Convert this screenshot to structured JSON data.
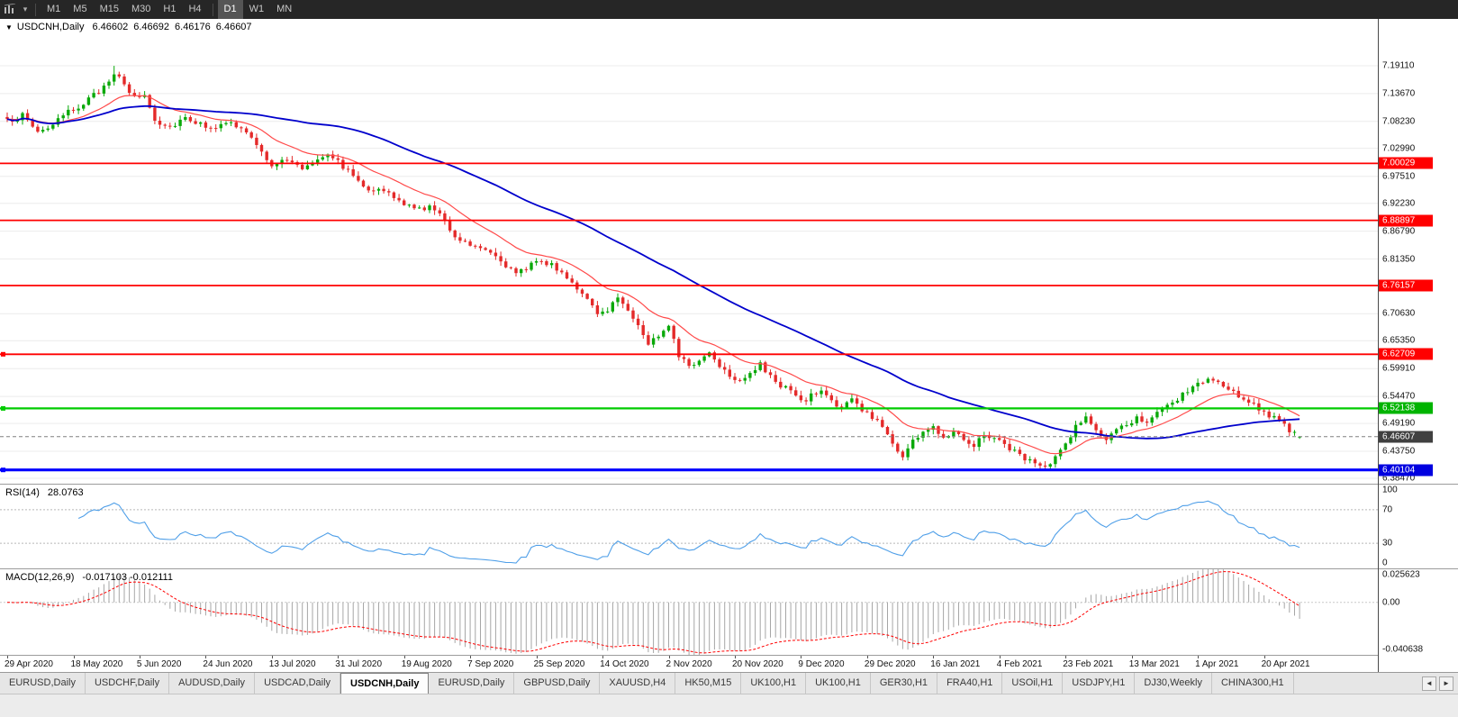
{
  "icons": {
    "chart_expand": "▼",
    "dropdown_caret": "▾",
    "scroll_left": "◄",
    "scroll_right": "►"
  },
  "colors": {
    "candle_up": "#09a909",
    "candle_down": "#e42a2a",
    "grid": "#ececec",
    "rsi_line": "#4f9fe8",
    "macd_histogram": "#a6a6a6",
    "macd_signal": "#ff0000",
    "current_price_badge": "#404040",
    "toolbar_bg": "#262626"
  },
  "toolbar": {
    "timeframes": [
      "M1",
      "M5",
      "M15",
      "M30",
      "H1",
      "H4",
      "D1",
      "W1",
      "MN"
    ],
    "active": "D1",
    "separator_after": "H4"
  },
  "chart_info": {
    "symbol_period": "USDCNH,Daily",
    "open": "6.46602",
    "high": "6.46692",
    "low": "6.46176",
    "close": "6.46607"
  },
  "rsi_panel": {
    "label": "RSI(14)",
    "value": "28.0763"
  },
  "macd_panel": {
    "label": "MACD(12,26,9)",
    "values": "-0.017103 -0.012111",
    "axis_labels": [
      "0.025623",
      "0.00",
      "-0.040638"
    ]
  },
  "tabs": {
    "items": [
      {
        "label": "EURUSD,Daily",
        "active": false
      },
      {
        "label": "USDCHF,Daily",
        "active": false
      },
      {
        "label": "AUDUSD,Daily",
        "active": false
      },
      {
        "label": "USDCAD,Daily",
        "active": false
      },
      {
        "label": "USDCNH,Daily",
        "active": true
      },
      {
        "label": "EURUSD,Daily",
        "active": false
      },
      {
        "label": "GBPUSD,Daily",
        "active": false
      },
      {
        "label": "XAUUSD,H4",
        "active": false
      },
      {
        "label": "HK50,M15",
        "active": false
      },
      {
        "label": "UK100,H1",
        "active": false
      },
      {
        "label": "UK100,H1",
        "active": false
      },
      {
        "label": "GER30,H1",
        "active": false
      },
      {
        "label": "FRA40,H1",
        "active": false
      },
      {
        "label": "USOil,H1",
        "active": false
      },
      {
        "label": "USDJPY,H1",
        "active": false
      },
      {
        "label": "DJ30,Weekly",
        "active": false
      },
      {
        "label": "CHINA300,H1",
        "active": false
      }
    ]
  },
  "chart_data": {
    "type": "candlestick",
    "symbol": "USDCNH",
    "timeframe": "Daily",
    "last_ohlc": {
      "open": 6.46602,
      "high": 6.46692,
      "low": 6.46176,
      "close": 6.46607
    },
    "current_price": 6.46607,
    "candles_count": 255,
    "bars_per_label": 13,
    "visible_range": {
      "price_min": 6.3741,
      "price_max": 7.2827
    },
    "extremes": {
      "high_index": 21,
      "high": 7.191,
      "low_index": 204,
      "low": 6.40104
    },
    "price_axis_ticks": [
      7.1911,
      7.1367,
      7.0823,
      7.0299,
      6.9751,
      6.9223,
      6.8679,
      6.8135,
      6.7063,
      6.6535,
      6.5991,
      6.5447,
      6.4919,
      6.4375,
      6.3847
    ],
    "horizontal_levels": [
      {
        "price": 7.00029,
        "color": "#ff0000",
        "badge": "#ff0000",
        "thickness": 1.8,
        "marker": false,
        "type": "resistance"
      },
      {
        "price": 6.88897,
        "color": "#ff0000",
        "badge": "#ff0000",
        "thickness": 1.8,
        "marker": false,
        "type": "resistance"
      },
      {
        "price": 6.76157,
        "color": "#ff0000",
        "badge": "#ff0000",
        "thickness": 1.8,
        "marker": false,
        "type": "resistance"
      },
      {
        "price": 6.62709,
        "color": "#ff0000",
        "badge": "#ff0000",
        "thickness": 1.8,
        "marker": true,
        "type": "resistance"
      },
      {
        "price": 6.52138,
        "color": "#00cc00",
        "badge": "#00b400",
        "thickness": 2.2,
        "marker": true,
        "type": "support"
      },
      {
        "price": 6.40104,
        "color": "#0000ff",
        "badge": "#0000e0",
        "thickness": 3.2,
        "marker": true,
        "type": "support"
      }
    ],
    "indicators": {
      "ma_fast": {
        "type": "EMA",
        "period": 16,
        "color": "#ff4a4a"
      },
      "ma_slow": {
        "type": "SMA",
        "period": 55,
        "color": "#0000cc"
      },
      "rsi": {
        "period": 14,
        "value": 28.0763,
        "levels": [
          100,
          70,
          30,
          0
        ],
        "dashed_levels": [
          70,
          30
        ]
      },
      "macd": {
        "fast": 12,
        "slow": 26,
        "signal": 9,
        "value": -0.017103,
        "signal_value": -0.012111,
        "axis": [
          0.025623,
          0,
          -0.040638
        ]
      }
    },
    "date_labels": [
      "29 Apr 2020",
      "18 May 2020",
      "5 Jun 2020",
      "24 Jun 2020",
      "13 Jul 2020",
      "31 Jul 2020",
      "19 Aug 2020",
      "7 Sep 2020",
      "25 Sep 2020",
      "14 Oct 2020",
      "2 Nov 2020",
      "20 Nov 2020",
      "9 Dec 2020",
      "29 Dec 2020",
      "16 Jan 2021",
      "4 Feb 2021",
      "23 Feb 2021",
      "13 Mar 2021",
      "1 Apr 2021",
      "20 Apr 2021"
    ],
    "price_anchors": [
      [
        0,
        7.082
      ],
      [
        3,
        7.094
      ],
      [
        6,
        7.063
      ],
      [
        9,
        7.075
      ],
      [
        12,
        7.1
      ],
      [
        15,
        7.118
      ],
      [
        18,
        7.14
      ],
      [
        21,
        7.178
      ],
      [
        23,
        7.152
      ],
      [
        25,
        7.128
      ],
      [
        27,
        7.135
      ],
      [
        29,
        7.085
      ],
      [
        32,
        7.072
      ],
      [
        35,
        7.092
      ],
      [
        38,
        7.076
      ],
      [
        41,
        7.072
      ],
      [
        44,
        7.078
      ],
      [
        47,
        7.062
      ],
      [
        50,
        7.02
      ],
      [
        52,
        6.999
      ],
      [
        55,
        7.006
      ],
      [
        58,
        6.991
      ],
      [
        61,
        7.011
      ],
      [
        63,
        7.022
      ],
      [
        65,
        7.004
      ],
      [
        68,
        6.976
      ],
      [
        71,
        6.952
      ],
      [
        74,
        6.946
      ],
      [
        77,
        6.927
      ],
      [
        80,
        6.91
      ],
      [
        83,
        6.916
      ],
      [
        86,
        6.89
      ],
      [
        88,
        6.858
      ],
      [
        91,
        6.842
      ],
      [
        94,
        6.836
      ],
      [
        97,
        6.812
      ],
      [
        100,
        6.782
      ],
      [
        102,
        6.796
      ],
      [
        104,
        6.814
      ],
      [
        107,
        6.8
      ],
      [
        110,
        6.78
      ],
      [
        112,
        6.757
      ],
      [
        114,
        6.732
      ],
      [
        116,
        6.703
      ],
      [
        118,
        6.716
      ],
      [
        120,
        6.738
      ],
      [
        122,
        6.717
      ],
      [
        124,
        6.682
      ],
      [
        126,
        6.648
      ],
      [
        128,
        6.664
      ],
      [
        130,
        6.688
      ],
      [
        132,
        6.627
      ],
      [
        134,
        6.601
      ],
      [
        136,
        6.616
      ],
      [
        138,
        6.631
      ],
      [
        140,
        6.607
      ],
      [
        142,
        6.587
      ],
      [
        144,
        6.577
      ],
      [
        146,
        6.592
      ],
      [
        148,
        6.606
      ],
      [
        150,
        6.582
      ],
      [
        152,
        6.567
      ],
      [
        154,
        6.556
      ],
      [
        156,
        6.533
      ],
      [
        158,
        6.546
      ],
      [
        160,
        6.556
      ],
      [
        162,
        6.537
      ],
      [
        164,
        6.521
      ],
      [
        166,
        6.541
      ],
      [
        168,
        6.517
      ],
      [
        170,
        6.503
      ],
      [
        172,
        6.489
      ],
      [
        174,
        6.452
      ],
      [
        176,
        6.428
      ],
      [
        178,
        6.458
      ],
      [
        180,
        6.476
      ],
      [
        182,
        6.483
      ],
      [
        184,
        6.466
      ],
      [
        186,
        6.479
      ],
      [
        188,
        6.464
      ],
      [
        190,
        6.449
      ],
      [
        192,
        6.471
      ],
      [
        194,
        6.464
      ],
      [
        196,
        6.451
      ],
      [
        198,
        6.436
      ],
      [
        200,
        6.425
      ],
      [
        202,
        6.412
      ],
      [
        204,
        6.404
      ],
      [
        206,
        6.424
      ],
      [
        208,
        6.452
      ],
      [
        210,
        6.487
      ],
      [
        212,
        6.504
      ],
      [
        214,
        6.476
      ],
      [
        216,
        6.461
      ],
      [
        218,
        6.476
      ],
      [
        220,
        6.489
      ],
      [
        222,
        6.505
      ],
      [
        224,
        6.497
      ],
      [
        226,
        6.511
      ],
      [
        228,
        6.523
      ],
      [
        230,
        6.539
      ],
      [
        232,
        6.556
      ],
      [
        234,
        6.569
      ],
      [
        236,
        6.578
      ],
      [
        238,
        6.571
      ],
      [
        240,
        6.556
      ],
      [
        242,
        6.546
      ],
      [
        244,
        6.536
      ],
      [
        246,
        6.521
      ],
      [
        248,
        6.508
      ],
      [
        250,
        6.494
      ],
      [
        252,
        6.478
      ],
      [
        254,
        6.466
      ]
    ]
  }
}
